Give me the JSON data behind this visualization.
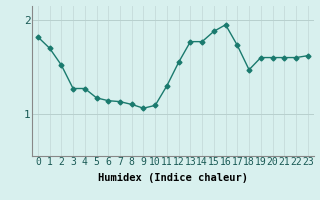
{
  "x": [
    0,
    1,
    2,
    3,
    4,
    5,
    6,
    7,
    8,
    9,
    10,
    11,
    12,
    13,
    14,
    15,
    16,
    17,
    18,
    19,
    20,
    21,
    22,
    23
  ],
  "y": [
    1.82,
    1.7,
    1.52,
    1.27,
    1.27,
    1.17,
    1.14,
    1.13,
    1.1,
    1.06,
    1.09,
    1.3,
    1.55,
    1.77,
    1.77,
    1.88,
    1.95,
    1.73,
    1.47,
    1.6,
    1.6,
    1.6,
    1.6,
    1.62
  ],
  "line_color": "#1a7a6e",
  "marker": "D",
  "marker_size": 2.5,
  "bg_color": "#d8f0ee",
  "grid_color_v": "#c8dedd",
  "grid_color_h": "#b8d0ce",
  "xlabel": "Humidex (Indice chaleur)",
  "yticks": [
    1,
    2
  ],
  "ylim": [
    0.55,
    2.15
  ],
  "xlim": [
    -0.5,
    23.5
  ],
  "xlabel_fontsize": 7.5,
  "tick_fontsize": 7,
  "line_width": 1.0,
  "figsize": [
    3.2,
    2.0
  ],
  "dpi": 100
}
